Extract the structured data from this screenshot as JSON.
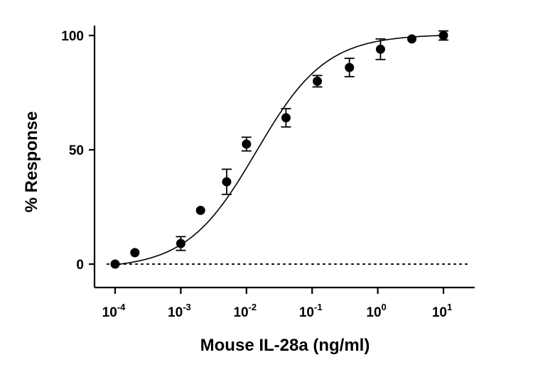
{
  "chart_data": {
    "type": "scatter",
    "title": "",
    "xlabel": "Mouse IL-28a (ng/ml)",
    "ylabel": "% Response",
    "xscale": "log10",
    "xlim_log10": [
      -4.3,
      1.5
    ],
    "ylim": [
      -10,
      103
    ],
    "grid": false,
    "legend": "none",
    "x_ticks": [
      {
        "base": "10",
        "exp": "-4",
        "log10": -4
      },
      {
        "base": "10",
        "exp": "-3",
        "log10": -3
      },
      {
        "base": "10",
        "exp": "-2",
        "log10": -2
      },
      {
        "base": "10",
        "exp": "-1",
        "log10": -1
      },
      {
        "base": "10",
        "exp": "0",
        "log10": 0
      },
      {
        "base": "10",
        "exp": "1",
        "log10": 1
      }
    ],
    "y_ticks": [
      {
        "label": "0",
        "value": 0
      },
      {
        "label": "50",
        "value": 50
      },
      {
        "label": "100",
        "value": 100
      }
    ],
    "reference_line": {
      "y": 0,
      "style": "dotted"
    },
    "series": [
      {
        "name": "Mouse IL-28a",
        "points": [
          {
            "x": 0.0001,
            "y": 0,
            "err": 0
          },
          {
            "x": 0.0002,
            "y": 5,
            "err": 0
          },
          {
            "x": 0.001,
            "y": 9,
            "err": 3
          },
          {
            "x": 0.002,
            "y": 23.5,
            "err": 0
          },
          {
            "x": 0.005,
            "y": 36,
            "err": 5.5
          },
          {
            "x": 0.01,
            "y": 52.5,
            "err": 3
          },
          {
            "x": 0.04,
            "y": 64,
            "err": 4
          },
          {
            "x": 0.12,
            "y": 80,
            "err": 2.5
          },
          {
            "x": 0.37,
            "y": 86,
            "err": 4
          },
          {
            "x": 1.1,
            "y": 94,
            "err": 4.5
          },
          {
            "x": 3.3,
            "y": 98.5,
            "err": 0
          },
          {
            "x": 10,
            "y": 100,
            "err": 2
          }
        ]
      }
    ],
    "fit": {
      "model": "4PL",
      "bottom": -2,
      "top": 100.5,
      "log_ec50": -1.85,
      "hill_slope": 0.82
    }
  }
}
